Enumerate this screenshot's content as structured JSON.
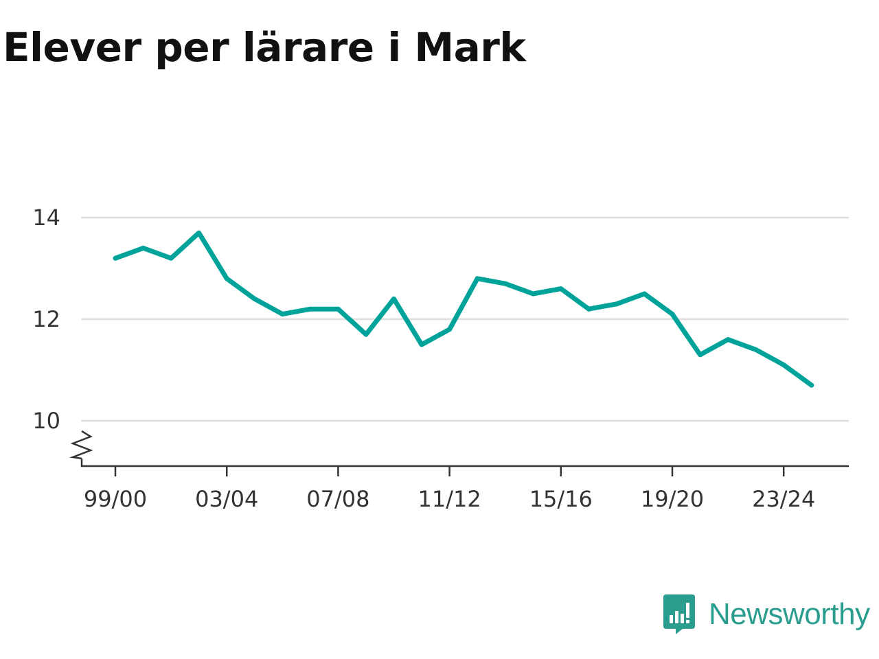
{
  "chart_data": {
    "type": "line",
    "title": "Elever per lärare i Mark",
    "xlabel": "",
    "ylabel": "",
    "x": [
      "99/00",
      "00/01",
      "01/02",
      "02/03",
      "03/04",
      "04/05",
      "05/06",
      "06/07",
      "07/08",
      "08/09",
      "09/10",
      "10/11",
      "11/12",
      "12/13",
      "13/14",
      "14/15",
      "15/16",
      "16/17",
      "17/18",
      "18/19",
      "19/20",
      "20/21",
      "21/22",
      "22/23",
      "23/24",
      "24/25"
    ],
    "values": [
      13.2,
      13.4,
      13.2,
      13.7,
      12.8,
      12.4,
      12.1,
      12.2,
      12.2,
      11.7,
      12.4,
      11.5,
      11.8,
      12.8,
      12.7,
      12.5,
      12.6,
      12.2,
      12.3,
      12.5,
      12.1,
      11.3,
      11.6,
      11.4,
      11.1,
      10.7
    ],
    "x_tick_labels": [
      "99/00",
      "03/04",
      "07/08",
      "11/12",
      "15/16",
      "19/20",
      "23/24"
    ],
    "y_ticks": [
      10,
      12,
      14
    ],
    "ylim": [
      9.1,
      14.2
    ],
    "grid": true,
    "axis_break": true,
    "line_color": "#00a399"
  },
  "brand": {
    "name": "Newsworthy",
    "color": "#2a9d8f",
    "icon": "newsworthy-logo-icon"
  }
}
